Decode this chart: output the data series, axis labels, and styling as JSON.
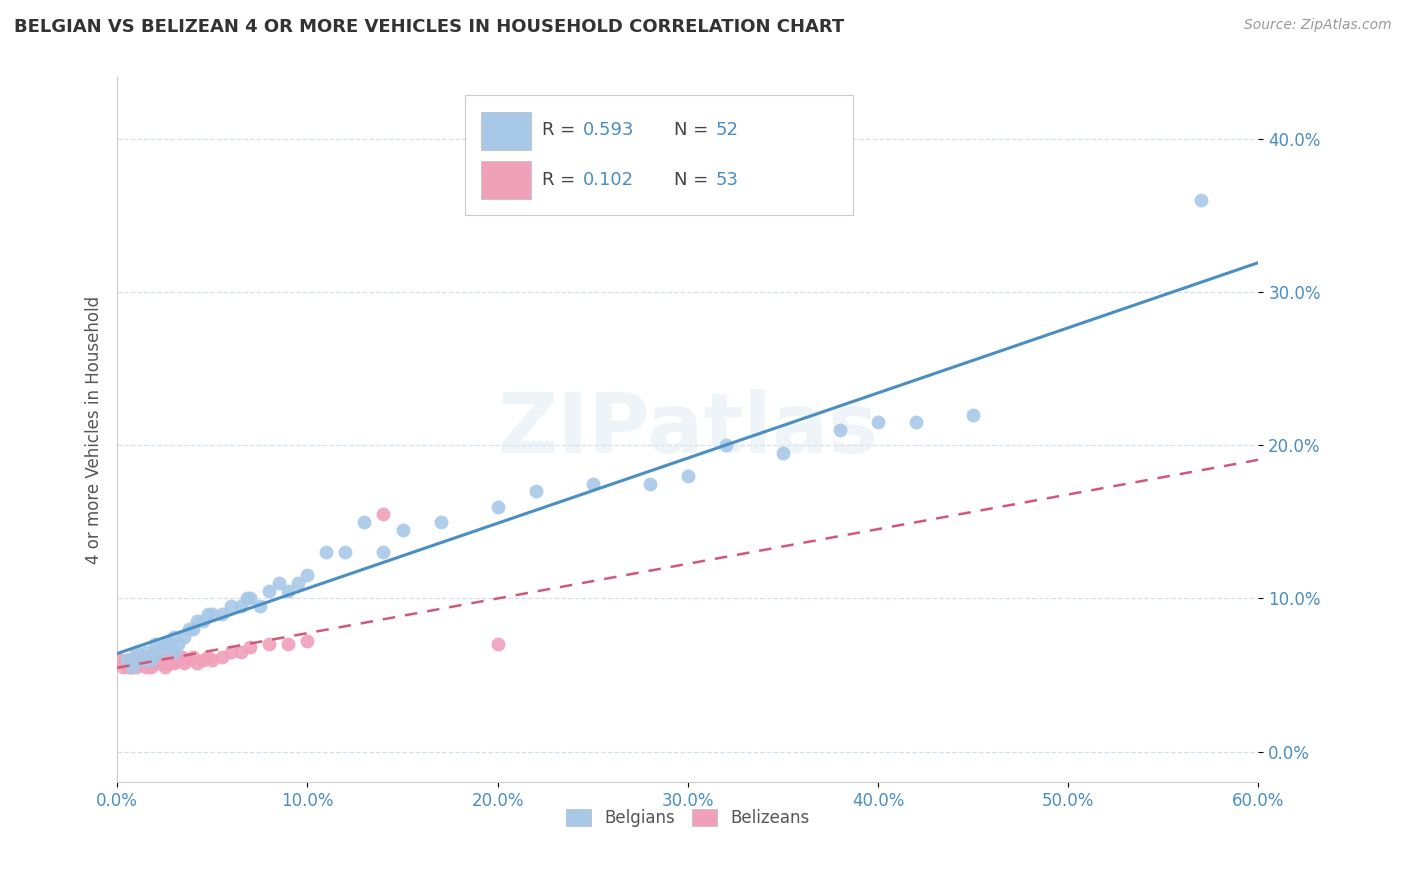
{
  "title": "BELGIAN VS BELIZEAN 4 OR MORE VEHICLES IN HOUSEHOLD CORRELATION CHART",
  "source": "Source: ZipAtlas.com",
  "ylabel": "4 or more Vehicles in Household",
  "xlim": [
    0.0,
    0.6
  ],
  "ylim": [
    -0.02,
    0.44
  ],
  "xticks": [
    0.0,
    0.1,
    0.2,
    0.3,
    0.4,
    0.5,
    0.6
  ],
  "yticks": [
    0.0,
    0.1,
    0.2,
    0.3,
    0.4
  ],
  "belgian_color": "#a8c8e8",
  "belizean_color": "#f0a0b8",
  "belgian_line_color": "#4a8ec2",
  "belizean_line_color": "#d05878",
  "R_belgian": 0.593,
  "N_belgian": 52,
  "R_belizean": 0.102,
  "N_belizean": 53,
  "watermark": "ZIPatlas",
  "belgian_x": [
    0.005,
    0.008,
    0.01,
    0.012,
    0.015,
    0.015,
    0.018,
    0.02,
    0.02,
    0.022,
    0.025,
    0.025,
    0.028,
    0.03,
    0.03,
    0.032,
    0.035,
    0.038,
    0.04,
    0.042,
    0.045,
    0.048,
    0.05,
    0.055,
    0.06,
    0.065,
    0.068,
    0.07,
    0.075,
    0.08,
    0.085,
    0.09,
    0.095,
    0.1,
    0.11,
    0.12,
    0.13,
    0.14,
    0.15,
    0.17,
    0.2,
    0.22,
    0.25,
    0.28,
    0.3,
    0.32,
    0.35,
    0.38,
    0.4,
    0.42,
    0.45,
    0.57
  ],
  "belgian_y": [
    0.06,
    0.055,
    0.065,
    0.06,
    0.06,
    0.065,
    0.06,
    0.065,
    0.07,
    0.065,
    0.07,
    0.068,
    0.07,
    0.065,
    0.075,
    0.07,
    0.075,
    0.08,
    0.08,
    0.085,
    0.085,
    0.09,
    0.09,
    0.09,
    0.095,
    0.095,
    0.1,
    0.1,
    0.095,
    0.105,
    0.11,
    0.105,
    0.11,
    0.115,
    0.13,
    0.13,
    0.15,
    0.13,
    0.145,
    0.15,
    0.16,
    0.17,
    0.175,
    0.175,
    0.18,
    0.2,
    0.195,
    0.21,
    0.215,
    0.215,
    0.22,
    0.36
  ],
  "belizean_x": [
    0.002,
    0.003,
    0.004,
    0.005,
    0.006,
    0.006,
    0.007,
    0.008,
    0.008,
    0.009,
    0.009,
    0.01,
    0.01,
    0.011,
    0.012,
    0.013,
    0.014,
    0.015,
    0.015,
    0.016,
    0.017,
    0.018,
    0.018,
    0.019,
    0.02,
    0.02,
    0.022,
    0.022,
    0.023,
    0.025,
    0.025,
    0.026,
    0.028,
    0.03,
    0.03,
    0.032,
    0.034,
    0.035,
    0.038,
    0.04,
    0.042,
    0.045,
    0.048,
    0.05,
    0.055,
    0.06,
    0.065,
    0.07,
    0.08,
    0.09,
    0.1,
    0.14,
    0.2
  ],
  "belizean_y": [
    0.06,
    0.055,
    0.058,
    0.06,
    0.055,
    0.06,
    0.055,
    0.058,
    0.06,
    0.058,
    0.06,
    0.055,
    0.062,
    0.058,
    0.06,
    0.062,
    0.06,
    0.055,
    0.06,
    0.058,
    0.06,
    0.055,
    0.062,
    0.058,
    0.06,
    0.062,
    0.058,
    0.06,
    0.062,
    0.055,
    0.06,
    0.058,
    0.06,
    0.062,
    0.058,
    0.06,
    0.062,
    0.058,
    0.06,
    0.062,
    0.058,
    0.06,
    0.062,
    0.06,
    0.062,
    0.065,
    0.065,
    0.068,
    0.07,
    0.07,
    0.072,
    0.155,
    0.07
  ]
}
